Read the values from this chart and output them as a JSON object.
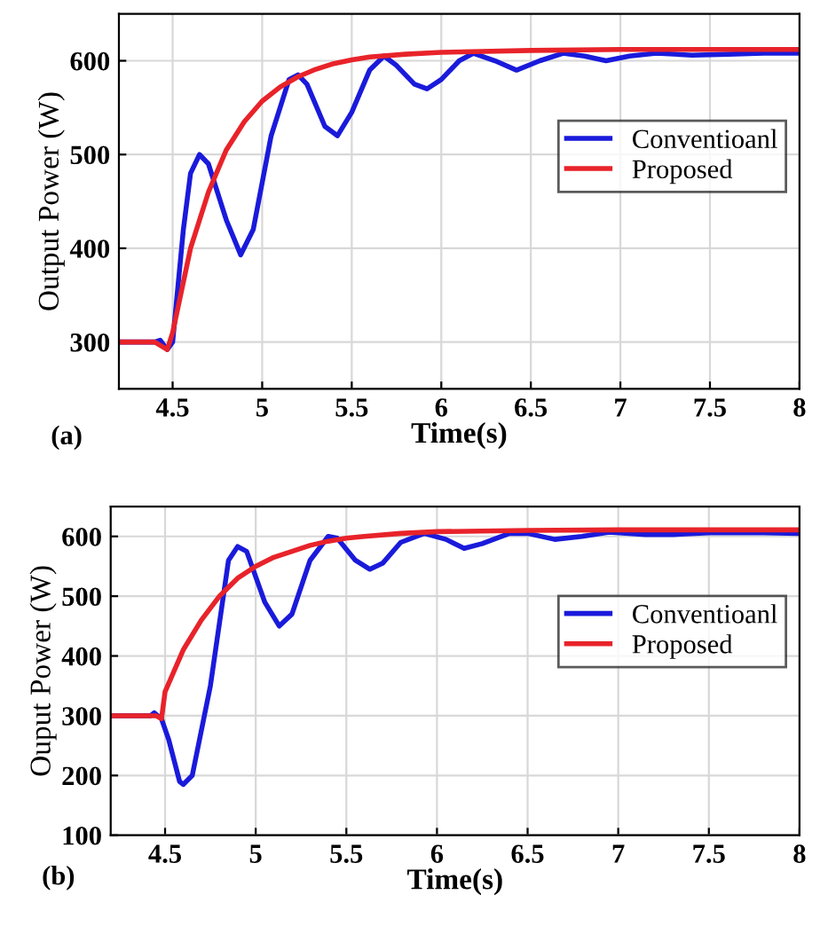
{
  "chart_data": [
    {
      "type": "line",
      "xlabel": "Time(s)",
      "ylabel": "Output Power (W)",
      "annotations": [
        "(a)"
      ],
      "xlim": [
        4.2,
        8
      ],
      "ylim": [
        250,
        650
      ],
      "xticks": [
        4.5,
        5,
        5.5,
        6,
        6.5,
        7,
        7.5,
        8
      ],
      "yticks": [
        300,
        400,
        500,
        600
      ],
      "grid": true,
      "legend": "right",
      "line_style": "solid",
      "marker": "none",
      "series": [
        {
          "name": "Conventioanl",
          "color": "#1a1adb",
          "x": [
            4.2,
            4.4,
            4.43,
            4.47,
            4.5,
            4.56,
            4.6,
            4.65,
            4.7,
            4.8,
            4.88,
            4.95,
            5.05,
            5.15,
            5.2,
            5.25,
            5.35,
            5.42,
            5.5,
            5.6,
            5.68,
            5.75,
            5.85,
            5.92,
            6.0,
            6.1,
            6.18,
            6.3,
            6.42,
            6.55,
            6.68,
            6.8,
            6.92,
            7.05,
            7.2,
            7.4,
            7.6,
            7.8,
            8
          ],
          "values": [
            300,
            300,
            302,
            292,
            300,
            420,
            480,
            500,
            490,
            430,
            393,
            420,
            520,
            580,
            585,
            575,
            530,
            520,
            545,
            590,
            605,
            595,
            575,
            570,
            580,
            600,
            608,
            600,
            590,
            600,
            608,
            605,
            600,
            605,
            608,
            606,
            607,
            608,
            608
          ]
        },
        {
          "name": "Proposed",
          "color": "#e8232a",
          "x": [
            4.2,
            4.4,
            4.47,
            4.5,
            4.6,
            4.7,
            4.8,
            4.9,
            5.0,
            5.1,
            5.2,
            5.3,
            5.4,
            5.5,
            5.6,
            5.8,
            6.0,
            6.5,
            7,
            8
          ],
          "values": [
            300,
            300,
            292,
            310,
            400,
            460,
            505,
            535,
            557,
            572,
            583,
            591,
            597,
            601,
            604,
            607,
            609,
            611,
            612,
            612
          ]
        }
      ]
    },
    {
      "type": "line",
      "xlabel": "Time(s)",
      "ylabel": "Ouput Power (W)",
      "annotations": [
        "(b)"
      ],
      "xlim": [
        4.2,
        8
      ],
      "ylim": [
        100,
        650
      ],
      "xticks": [
        4.5,
        5,
        5.5,
        6,
        6.5,
        7,
        7.5,
        8
      ],
      "yticks": [
        100,
        200,
        300,
        400,
        500,
        600
      ],
      "grid": true,
      "legend": "right",
      "line_style": "solid",
      "marker": "none",
      "series": [
        {
          "name": "Conventioanl",
          "color": "#1a1adb",
          "x": [
            4.2,
            4.42,
            4.44,
            4.48,
            4.52,
            4.58,
            4.6,
            4.65,
            4.75,
            4.85,
            4.9,
            4.95,
            5.05,
            5.13,
            5.2,
            5.3,
            5.4,
            5.45,
            5.55,
            5.63,
            5.7,
            5.8,
            5.93,
            6.05,
            6.15,
            6.25,
            6.4,
            6.5,
            6.65,
            6.8,
            6.95,
            7.15,
            7.3,
            7.5,
            7.8,
            8
          ],
          "values": [
            300,
            300,
            305,
            295,
            260,
            190,
            185,
            200,
            350,
            560,
            583,
            575,
            490,
            450,
            470,
            560,
            600,
            597,
            560,
            545,
            555,
            590,
            605,
            595,
            580,
            588,
            605,
            605,
            595,
            600,
            607,
            603,
            603,
            606,
            606,
            605
          ]
        },
        {
          "name": "Proposed",
          "color": "#e8232a",
          "x": [
            4.2,
            4.45,
            4.48,
            4.5,
            4.6,
            4.7,
            4.8,
            4.9,
            5.0,
            5.1,
            5.2,
            5.3,
            5.4,
            5.5,
            5.6,
            5.8,
            6.0,
            6.5,
            7,
            8
          ],
          "values": [
            300,
            300,
            295,
            340,
            410,
            460,
            500,
            530,
            550,
            565,
            575,
            585,
            592,
            597,
            600,
            605,
            608,
            610,
            611,
            611
          ]
        }
      ]
    }
  ]
}
